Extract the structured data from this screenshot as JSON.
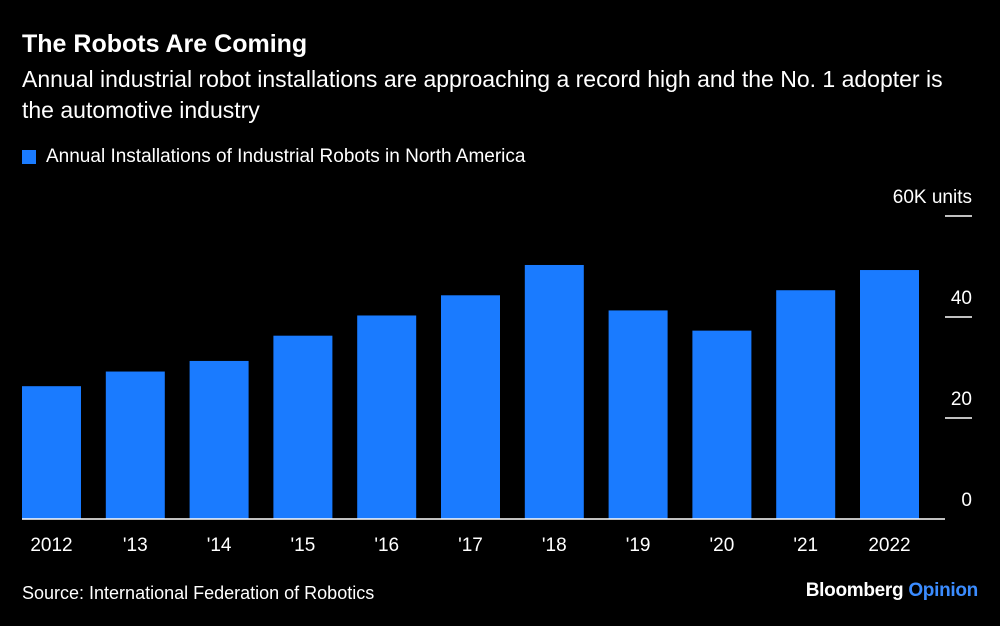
{
  "header": {
    "title": "The Robots Are Coming",
    "subtitle": "Annual industrial robot installations are approaching a record high and the No. 1 adopter is the automotive industry"
  },
  "legend": {
    "label": "Annual Installations of Industrial Robots in North America"
  },
  "colors": {
    "bar": "#1a7bff",
    "axis": "#ffffff",
    "background": "#000000"
  },
  "chart_data": {
    "type": "bar",
    "categories": [
      "2012",
      "'13",
      "'14",
      "'15",
      "'16",
      "'17",
      "'18",
      "'19",
      "'20",
      "'21",
      "2022"
    ],
    "series": [
      {
        "name": "Annual Installations of Industrial Robots in North America",
        "values": [
          26.3,
          29.2,
          31.3,
          36.3,
          40.3,
          44.3,
          50.3,
          41.3,
          37.3,
          45.3,
          49.3
        ]
      }
    ],
    "ylim": [
      0,
      60
    ],
    "yticks": [
      0,
      20,
      40,
      60
    ],
    "ytick_labels": [
      "0",
      "20",
      "40",
      "60K units"
    ],
    "xlabel": "",
    "ylabel": "",
    "grid": false,
    "legend_position": "top-left"
  },
  "footer": {
    "source": "Source: International Federation of Robotics",
    "brand_main": "Bloomberg",
    "brand_accent": "Opinion"
  }
}
